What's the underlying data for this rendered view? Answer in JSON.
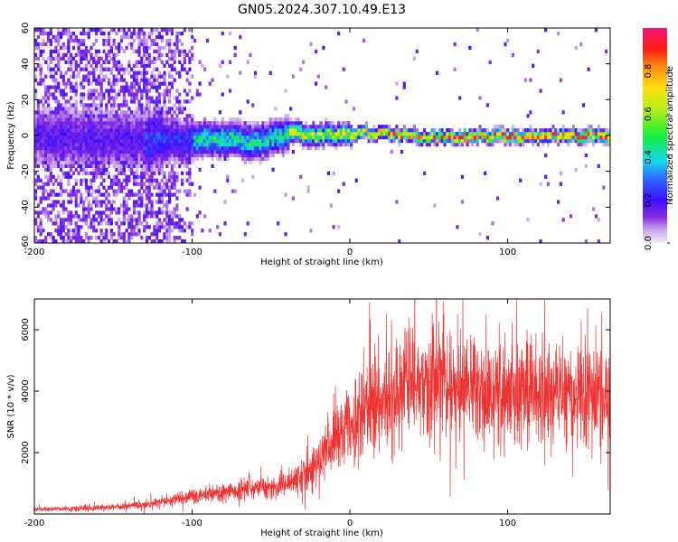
{
  "title": "GN05.2024.307.10.49.E13",
  "chart_data": [
    {
      "type": "heatmap",
      "xlabel": "Height of straight line (km)",
      "ylabel": "Frequency (Hz)",
      "xlim": [
        -200,
        165
      ],
      "ylim": [
        -60,
        60
      ],
      "x_ticks": [
        "-200",
        "-100",
        "0",
        "100"
      ],
      "y_ticks": [
        "60",
        "40",
        "20",
        "0",
        "-20",
        "-40",
        "-60"
      ],
      "colorbar": {
        "label": "Normalized spectral amplitude",
        "range": [
          0,
          1
        ],
        "ticks": [
          "0.0",
          "0.2",
          "0.4",
          "0.6",
          "0.8"
        ],
        "colormap": "rainbow (purple to red/magenta)"
      },
      "band_center_hz": [
        [
          -200,
          0
        ],
        [
          -150,
          -2
        ],
        [
          -120,
          -2
        ],
        [
          -100,
          -3
        ],
        [
          -80,
          -2
        ],
        [
          -60,
          -3
        ],
        [
          -45,
          -1
        ],
        [
          -35,
          2
        ],
        [
          -25,
          0
        ],
        [
          -10,
          1
        ],
        [
          0,
          0
        ],
        [
          10,
          2
        ],
        [
          20,
          1
        ],
        [
          40,
          0
        ],
        [
          60,
          -1
        ],
        [
          80,
          0
        ],
        [
          100,
          0
        ],
        [
          130,
          0
        ],
        [
          165,
          0
        ]
      ]
    },
    {
      "type": "line",
      "xlabel": "Height of straight line (km)",
      "ylabel": "SNR (10 * v/v)",
      "xlim": [
        -200,
        165
      ],
      "ylim": [
        0,
        7000
      ],
      "x_ticks": [
        "-200",
        "-100",
        "0",
        "100"
      ],
      "y_ticks": [
        "6000",
        "4000",
        "2000"
      ],
      "color": "#ee3333",
      "trend": [
        [
          -200,
          150
        ],
        [
          -160,
          200
        ],
        [
          -130,
          300
        ],
        [
          -110,
          500
        ],
        [
          -90,
          650
        ],
        [
          -70,
          800
        ],
        [
          -50,
          900
        ],
        [
          -40,
          1000
        ],
        [
          -30,
          1200
        ],
        [
          -20,
          1600
        ],
        [
          -10,
          2400
        ],
        [
          0,
          3000
        ],
        [
          10,
          3500
        ],
        [
          20,
          3800
        ],
        [
          30,
          4000
        ],
        [
          40,
          4200
        ],
        [
          50,
          4400
        ],
        [
          60,
          4400
        ],
        [
          70,
          4100
        ],
        [
          80,
          4000
        ],
        [
          90,
          3900
        ],
        [
          100,
          4100
        ],
        [
          120,
          4000
        ],
        [
          140,
          3900
        ],
        [
          165,
          3800
        ]
      ]
    }
  ]
}
